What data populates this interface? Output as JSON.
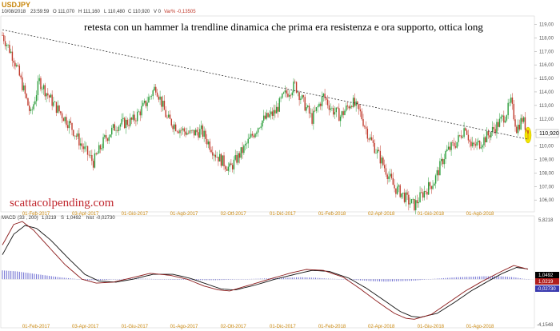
{
  "header": {
    "symbol": "USDJPY",
    "date": "10/08/2018",
    "time": "23:59:59",
    "open": "O 111,070",
    "high": "H 111,160",
    "low": "L 110,480",
    "close": "C 110,920",
    "volume": "V 0",
    "var": "Var% -0,13505"
  },
  "annotation": "retesta con un hammer la trendline dinamica che prima era resistenza e ora supporto, ottica long",
  "watermark": "scattacolpending.com",
  "last_price_label": "110,920",
  "macd_panel": {
    "title": "MACD",
    "params": "(33 , 200)",
    "macd_value": "1,0219",
    "signal_label": "S",
    "signal_value": "1,0492",
    "hist_label": "hist",
    "hist_value": "-0,02730",
    "badge_signal": "1,0492",
    "badge_macd": "1,0219",
    "badge_hist": "-0,02730",
    "top_tick": "5,8218",
    "bottom_tick": "-4,1548"
  },
  "colors": {
    "up": "#2a9d3a",
    "down": "#c0392b",
    "macd_line": "#8b1a1a",
    "signal_line": "#111111",
    "histogram": "#6a6ad0",
    "trendline": "#333333",
    "highlight": "#f2e600"
  },
  "chart_data": [
    {
      "type": "candlestick",
      "title": "USDJPY",
      "ylim": [
        105.3,
        119.5
      ],
      "yticks": [
        "119,00",
        "118,00",
        "117,00",
        "116,00",
        "115,00",
        "114,00",
        "113,00",
        "112,00",
        "111,00",
        "110,00",
        "109,00",
        "108,00",
        "107,00",
        "106,00"
      ],
      "xticks": [
        "01-Feb-2017",
        "03-Apr-2017",
        "01-Giu-2017",
        "01-Ago-2017",
        "02-Ott-2017",
        "01-Dic-2017",
        "01-Feb-2018",
        "02-Apr-2018",
        "01-Giu-2018",
        "01-Ago-2018"
      ],
      "path": [
        [
          0,
          118.2
        ],
        [
          8,
          116.5
        ],
        [
          14,
          114.5
        ],
        [
          20,
          112.3
        ],
        [
          26,
          114.8
        ],
        [
          36,
          113.1
        ],
        [
          48,
          111.5
        ],
        [
          56,
          110.0
        ],
        [
          64,
          108.8
        ],
        [
          72,
          110.5
        ],
        [
          80,
          111.5
        ],
        [
          92,
          111.9
        ],
        [
          100,
          113.0
        ],
        [
          108,
          114.4
        ],
        [
          116,
          112.0
        ],
        [
          124,
          111.3
        ],
        [
          132,
          110.9
        ],
        [
          140,
          111.1
        ],
        [
          150,
          109.4
        ],
        [
          160,
          108.3
        ],
        [
          170,
          109.8
        ],
        [
          182,
          111.8
        ],
        [
          192,
          112.5
        ],
        [
          198,
          113.7
        ],
        [
          206,
          114.5
        ],
        [
          212,
          113.2
        ],
        [
          218,
          112.0
        ],
        [
          226,
          113.7
        ],
        [
          232,
          112.7
        ],
        [
          238,
          112.2
        ],
        [
          246,
          113.3
        ],
        [
          252,
          112.4
        ],
        [
          258,
          110.7
        ],
        [
          264,
          109.5
        ],
        [
          270,
          108.2
        ],
        [
          276,
          106.9
        ],
        [
          280,
          106.6
        ],
        [
          286,
          105.9
        ],
        [
          290,
          105.6
        ],
        [
          296,
          106.5
        ],
        [
          304,
          107.4
        ],
        [
          312,
          109.5
        ],
        [
          320,
          110.3
        ],
        [
          326,
          111.5
        ],
        [
          330,
          109.9
        ],
        [
          336,
          110.2
        ],
        [
          342,
          110.8
        ],
        [
          348,
          111.5
        ],
        [
          354,
          112.3
        ],
        [
          358,
          113.2
        ],
        [
          362,
          111.3
        ],
        [
          366,
          112.0
        ],
        [
          370,
          111.0
        ]
      ],
      "trendline": [
        [
          0,
          118.6
        ],
        [
          370,
          110.5
        ]
      ],
      "last_close": 110.92
    },
    {
      "type": "macd",
      "ylim": [
        -4.1548,
        5.8218
      ],
      "macd_points": [
        [
          0,
          3.5
        ],
        [
          8,
          5.6
        ],
        [
          14,
          5.9
        ],
        [
          22,
          5.0
        ],
        [
          32,
          3.4
        ],
        [
          44,
          1.5
        ],
        [
          56,
          0.0
        ],
        [
          66,
          -0.4
        ],
        [
          78,
          -0.3
        ],
        [
          90,
          0.1
        ],
        [
          104,
          0.6
        ],
        [
          118,
          0.4
        ],
        [
          130,
          0.0
        ],
        [
          142,
          -0.7
        ],
        [
          152,
          -1.1
        ],
        [
          160,
          -1.2
        ],
        [
          174,
          -0.6
        ],
        [
          188,
          0.0
        ],
        [
          202,
          0.6
        ],
        [
          214,
          1.0
        ],
        [
          226,
          0.9
        ],
        [
          240,
          0.2
        ],
        [
          252,
          -1.0
        ],
        [
          264,
          -2.3
        ],
        [
          276,
          -3.5
        ],
        [
          284,
          -4.0
        ],
        [
          290,
          -4.1
        ],
        [
          302,
          -3.6
        ],
        [
          314,
          -2.4
        ],
        [
          326,
          -1.2
        ],
        [
          338,
          -0.2
        ],
        [
          350,
          0.7
        ],
        [
          360,
          1.4
        ],
        [
          370,
          1.0219
        ]
      ],
      "signal_points": [
        [
          0,
          2.5
        ],
        [
          8,
          4.6
        ],
        [
          16,
          5.5
        ],
        [
          24,
          5.2
        ],
        [
          34,
          4.0
        ],
        [
          46,
          2.2
        ],
        [
          58,
          0.5
        ],
        [
          68,
          -0.2
        ],
        [
          80,
          -0.3
        ],
        [
          92,
          0.0
        ],
        [
          106,
          0.5
        ],
        [
          120,
          0.5
        ],
        [
          132,
          0.1
        ],
        [
          144,
          -0.5
        ],
        [
          154,
          -1.0
        ],
        [
          164,
          -1.1
        ],
        [
          178,
          -0.6
        ],
        [
          192,
          0.0
        ],
        [
          206,
          0.5
        ],
        [
          218,
          0.9
        ],
        [
          230,
          0.8
        ],
        [
          244,
          0.1
        ],
        [
          256,
          -0.9
        ],
        [
          268,
          -2.1
        ],
        [
          280,
          -3.3
        ],
        [
          288,
          -3.8
        ],
        [
          294,
          -3.9
        ],
        [
          306,
          -3.5
        ],
        [
          318,
          -2.4
        ],
        [
          330,
          -1.2
        ],
        [
          342,
          -0.2
        ],
        [
          352,
          0.6
        ],
        [
          362,
          1.2
        ],
        [
          370,
          1.0492
        ]
      ],
      "histogram": [
        [
          0,
          0.9
        ],
        [
          10,
          0.8
        ],
        [
          20,
          0.6
        ],
        [
          30,
          0.4
        ],
        [
          40,
          0.2
        ],
        [
          50,
          0.05
        ],
        [
          60,
          -0.1
        ],
        [
          70,
          -0.1
        ],
        [
          80,
          0.0
        ],
        [
          90,
          0.05
        ],
        [
          100,
          0.05
        ],
        [
          110,
          0.0
        ],
        [
          120,
          -0.05
        ],
        [
          130,
          -0.05
        ],
        [
          140,
          -0.1
        ],
        [
          150,
          -0.1
        ],
        [
          160,
          -0.05
        ],
        [
          170,
          0.0
        ],
        [
          180,
          0.05
        ],
        [
          190,
          0.1
        ],
        [
          200,
          0.15
        ],
        [
          210,
          0.2
        ],
        [
          220,
          0.15
        ],
        [
          230,
          0.05
        ],
        [
          240,
          0.0
        ],
        [
          250,
          -0.1
        ],
        [
          260,
          -0.2
        ],
        [
          270,
          -0.25
        ],
        [
          280,
          -0.2
        ],
        [
          290,
          -0.15
        ],
        [
          300,
          0.0
        ],
        [
          310,
          0.1
        ],
        [
          320,
          0.2
        ],
        [
          330,
          0.25
        ],
        [
          340,
          0.3
        ],
        [
          350,
          0.3
        ],
        [
          360,
          0.2
        ],
        [
          370,
          -0.0273
        ]
      ]
    }
  ]
}
